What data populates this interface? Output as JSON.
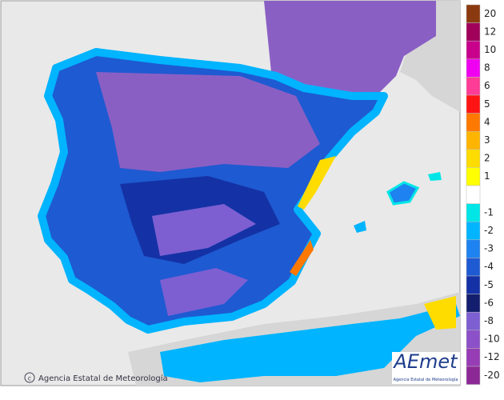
{
  "legend": [
    {
      "value": 20,
      "color": "#8b3a0f"
    },
    {
      "value": 12,
      "color": "#a0005a"
    },
    {
      "value": 10,
      "color": "#c8008c"
    },
    {
      "value": 8,
      "color": "#f000f0"
    },
    {
      "value": 6,
      "color": "#ff3c96"
    },
    {
      "value": 5,
      "color": "#ff1414"
    },
    {
      "value": 4,
      "color": "#ff7800"
    },
    {
      "value": 3,
      "color": "#ffb400"
    },
    {
      "value": 2,
      "color": "#ffdc00"
    },
    {
      "value": 1,
      "color": "#ffff00"
    },
    {
      "value": -1,
      "color": "#00e6e6"
    },
    {
      "value": -2,
      "color": "#00b4ff"
    },
    {
      "value": -3,
      "color": "#1e82f0"
    },
    {
      "value": -4,
      "color": "#1e5ad2"
    },
    {
      "value": -5,
      "color": "#1432a5"
    },
    {
      "value": -6,
      "color": "#141e6e"
    },
    {
      "value": -8,
      "color": "#7d5fd2"
    },
    {
      "value": -10,
      "color": "#8c50c8"
    },
    {
      "value": -12,
      "color": "#963cb4"
    },
    {
      "value": -20,
      "color": "#8c2896"
    }
  ],
  "attribution": "Agencia Estatal de Meteorología",
  "logo": {
    "name": "AEmet",
    "subtitle": "Agencia Estatal de Meteorología"
  }
}
